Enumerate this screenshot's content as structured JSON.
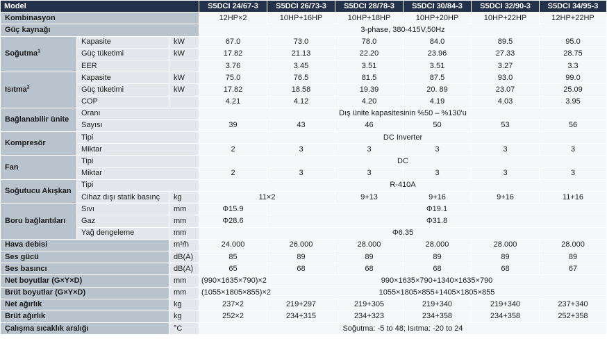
{
  "header": {
    "model_label": "Model",
    "models": [
      "S5DCI 24/67-3",
      "S5DCI 26/73-3",
      "S5DCI 28/78-3",
      "S5DCI 30/84-3",
      "S5DCI 32/90-3",
      "S5DCI 34/95-3"
    ]
  },
  "kombinasyon": {
    "label": "Kombinasyon",
    "values": [
      "12HP×2",
      "10HP+16HP",
      "10HP+18HP",
      "10HP+20HP",
      "10HP+22HP",
      "12HP+22HP"
    ]
  },
  "guc_kaynagi": {
    "label": "Güç kaynağı",
    "value": "3-phase, 380-415V,50Hz"
  },
  "sogutma": {
    "label": "Soğutma",
    "sup": "1",
    "rows": [
      {
        "label": "Kapasite",
        "unit": "kW",
        "values": [
          "67.0",
          "73.0",
          "78.0",
          "84.0",
          "89.5",
          "95.0"
        ]
      },
      {
        "label": "Güç tüketimi",
        "unit": "kW",
        "values": [
          "17.82",
          "21.13",
          "22.20",
          "23.96",
          "27.33",
          "28.75"
        ]
      },
      {
        "label": "EER",
        "unit": "",
        "values": [
          "3.76",
          "3.45",
          "3.51",
          "3.51",
          "3.27",
          "3.3"
        ]
      }
    ]
  },
  "isitma": {
    "label": "Isıtma",
    "sup": "2",
    "rows": [
      {
        "label": "Kapasite",
        "unit": "kW",
        "values": [
          "75.0",
          "76.5",
          "81.5",
          "87.5",
          "93.0",
          "99.0"
        ]
      },
      {
        "label": "Güç tüketimi",
        "unit": "kW",
        "values": [
          "17.82",
          "18.58",
          "19.39",
          "20. 89",
          "23.07",
          "25.09"
        ]
      },
      {
        "label": "COP",
        "unit": "",
        "values": [
          "4.21",
          "4.12",
          "4.20",
          "4.19",
          "4.03",
          "3.95"
        ]
      }
    ]
  },
  "baglanabilir": {
    "label": "Bağlanabilir ünite",
    "orani_label": "Oranı",
    "orani_value": "Dış ünite kapasitesinin %50 – %130'u",
    "sayisi_label": "Sayısı",
    "sayisi_values": [
      "39",
      "43",
      "46",
      "50",
      "53",
      "56"
    ]
  },
  "kompresor": {
    "label": "Kompresör",
    "tipi_label": "Tipi",
    "tipi_value": "DC Inverter",
    "miktar_label": "Miktar",
    "miktar_values": [
      "2",
      "3",
      "3",
      "3",
      "3",
      "3"
    ]
  },
  "fan": {
    "label": "Fan",
    "tipi_label": "Tipi",
    "tipi_value": "DC",
    "miktar_label": "Miktar",
    "miktar_values": [
      "2",
      "3",
      "3",
      "3",
      "3",
      "3"
    ]
  },
  "sogutucu": {
    "label": "Soğutucu Akışkan",
    "tipi_label": "Tipi",
    "tipi_value": "R-410A",
    "statik_label": "Cihaz dışı statik basınç",
    "statik_unit": "kg",
    "statik_first": "11×2",
    "statik_values": [
      "9+13",
      "9+16",
      "9+16",
      "11+16"
    ]
  },
  "boru": {
    "label": "Boru bağlantıları",
    "sivi_label": "Sıvı",
    "sivi_unit": "mm",
    "sivi_first": "Φ15.9",
    "sivi_rest": "Φ19.1",
    "gaz_label": "Gaz",
    "gaz_unit": "mm",
    "gaz_first": "Φ28.6",
    "gaz_rest": "Φ31.8",
    "yag_label": "Yağ dengeleme",
    "yag_unit": "mm",
    "yag_value": "Φ6.35"
  },
  "hava_debisi": {
    "label": "Hava debisi",
    "unit": "m³/h",
    "values": [
      "24.000",
      "26.000",
      "28.000",
      "28.000",
      "28.000",
      "28.000"
    ]
  },
  "ses_gucu": {
    "label": "Ses gücü",
    "unit": "dB(A)",
    "values": [
      "85",
      "89",
      "89",
      "89",
      "89",
      "89"
    ]
  },
  "ses_basinci": {
    "label": "Ses basıncı",
    "unit": "dB(A)",
    "values": [
      "65",
      "68",
      "68",
      "68",
      "68",
      "67"
    ]
  },
  "net_boyut": {
    "label": "Net boyutlar (G×Y×D)",
    "unit": "mm",
    "first": "(990×1635×790)×2",
    "rest": "990×1635×790+1340×1635×790"
  },
  "brut_boyut": {
    "label": "Brüt boyutlar (G×Y×D)",
    "unit": "mm",
    "first": "(1055×1805×855)×2",
    "rest": "1055×1805×855+1405×1805×855"
  },
  "net_agirlik": {
    "label": "Net ağırlık",
    "unit": "kg",
    "values": [
      "237×2",
      "219+297",
      "219+305",
      "219+340",
      "219+340",
      "237+340"
    ]
  },
  "brut_agirlik": {
    "label": "Brüt ağırlık",
    "unit": "kg",
    "values": [
      "252×2",
      "234+315",
      "234+323",
      "234+358",
      "234+358",
      "252+358"
    ]
  },
  "calisma": {
    "label": "Çalışma sıcaklık aralığı",
    "unit": "°C",
    "value": "Soğutma: -5 to 48; Isıtma: -20 to 24"
  }
}
